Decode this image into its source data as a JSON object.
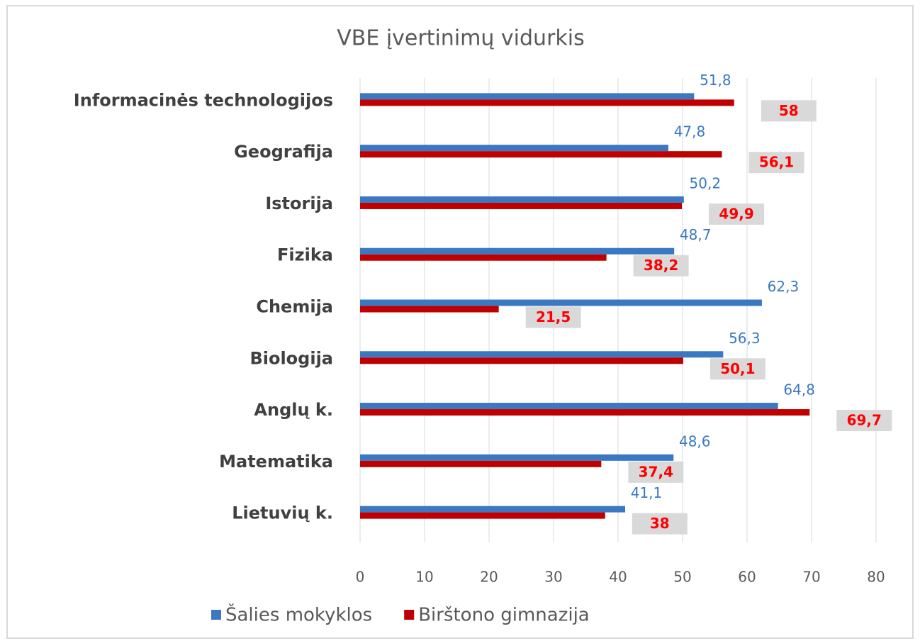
{
  "chart_data": {
    "type": "hbar",
    "title": "VBE įvertinimų vidurkis",
    "categories": [
      "Informacinės technologijos",
      "Geografija",
      "Istorija",
      "Fizika",
      "Chemija",
      "Biologija",
      "Anglų k.",
      "Matematika",
      "Lietuvių k."
    ],
    "series": [
      {
        "name": "Šalies mokyklos",
        "color": "#3a78c2",
        "values": [
          51.8,
          47.8,
          50.2,
          48.7,
          62.3,
          56.3,
          64.8,
          48.6,
          41.1
        ],
        "value_labels": [
          "51,8",
          "47,8",
          "50,2",
          "48,7",
          "62,3",
          "56,3",
          "64,8",
          "48,6",
          "41,1"
        ]
      },
      {
        "name": "Birštono gimnazija",
        "color": "#c00000",
        "values": [
          58,
          56.1,
          49.9,
          38.2,
          21.5,
          50.1,
          69.7,
          37.4,
          38
        ],
        "value_labels": [
          "58",
          "56,1",
          "49,9",
          "38,2",
          "21,5",
          "50,1",
          "69,7",
          "37,4",
          "38"
        ]
      }
    ],
    "xlim": [
      0,
      80
    ],
    "xticks": [
      0,
      10,
      20,
      30,
      40,
      50,
      60,
      70,
      80
    ],
    "grid": true,
    "legend": "bottom"
  }
}
